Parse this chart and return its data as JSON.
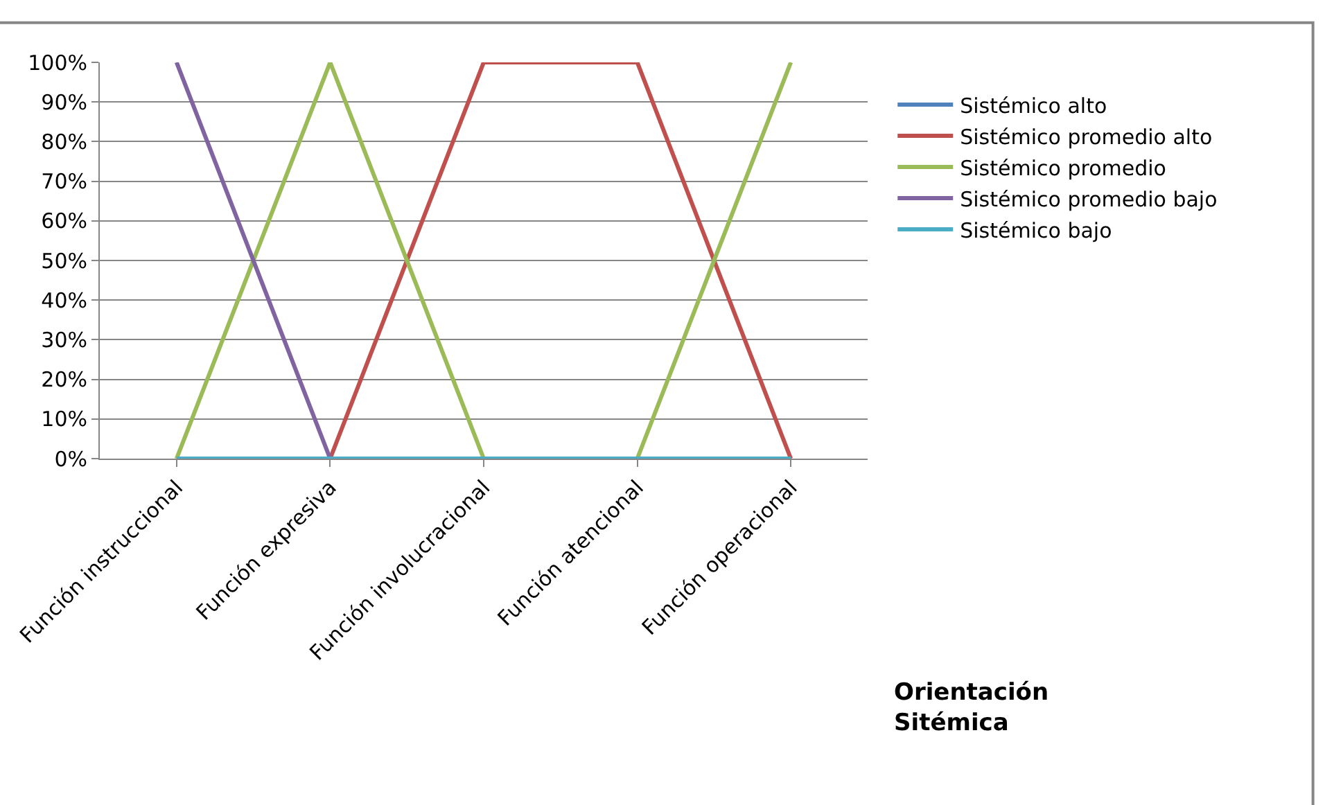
{
  "chart_data": {
    "type": "line",
    "legend_title": "Orientación Sitémica",
    "categories": [
      "Función instruccional",
      "Función expresiva",
      "Función involucracional",
      "Función atencional",
      "Función operacional"
    ],
    "series": [
      {
        "name": "Sistémico alto",
        "color": "#4f81bd",
        "values": [
          null,
          null,
          null,
          null,
          null
        ]
      },
      {
        "name": "Sistémico promedio alto",
        "color": "#c0504d",
        "values": [
          0,
          0,
          100,
          100,
          0
        ]
      },
      {
        "name": "Sistémico promedio",
        "color": "#9bbb59",
        "values": [
          0,
          100,
          0,
          0,
          100
        ]
      },
      {
        "name": "Sistémico promedio bajo",
        "color": "#8064a2",
        "values": [
          100,
          0,
          null,
          null,
          null
        ]
      },
      {
        "name": "Sistémico bajo",
        "color": "#4bacc6",
        "values": [
          0,
          0,
          0,
          0,
          0
        ]
      }
    ],
    "ylim": [
      0,
      100
    ],
    "yticks": [
      {
        "value": 0,
        "label": "0%"
      },
      {
        "value": 10,
        "label": "10%"
      },
      {
        "value": 20,
        "label": "20%"
      },
      {
        "value": 30,
        "label": "30%"
      },
      {
        "value": 40,
        "label": "40%"
      },
      {
        "value": 50,
        "label": "50%"
      },
      {
        "value": 60,
        "label": "60%"
      },
      {
        "value": 70,
        "label": "70%"
      },
      {
        "value": 80,
        "label": "80%"
      },
      {
        "value": 90,
        "label": "90%"
      },
      {
        "value": 100,
        "label": "100%"
      }
    ],
    "grid": "y",
    "legend": "right",
    "marker": "none",
    "line_style": "solid"
  }
}
